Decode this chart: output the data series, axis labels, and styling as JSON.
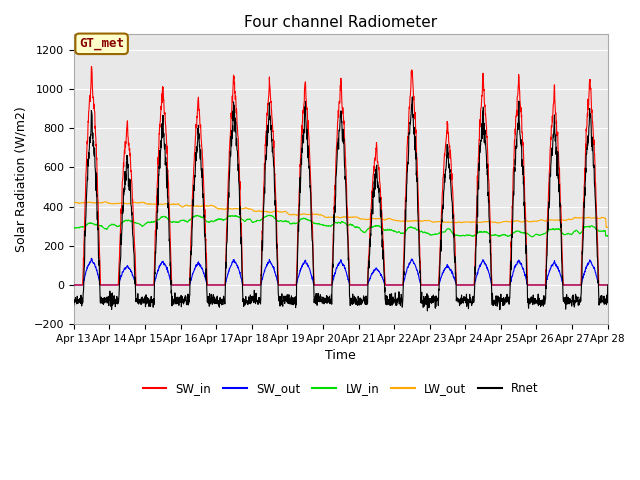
{
  "title": "Four channel Radiometer",
  "xlabel": "Time",
  "ylabel": "Solar Radiation (W/m2)",
  "ylim": [
    -200,
    1280
  ],
  "yticks": [
    -200,
    0,
    200,
    400,
    600,
    800,
    1000,
    1200
  ],
  "n_days": 15,
  "n_points": 2160,
  "annotation_text": "GT_met",
  "annotation_bg": "#ffffcc",
  "annotation_border": "#996600",
  "fig_bg": "#ffffff",
  "plot_bg": "#e8e8e8",
  "grid_color": "#ffffff",
  "series": {
    "SW_in": {
      "color": "#ff0000",
      "lw": 0.8
    },
    "SW_out": {
      "color": "#0000ff",
      "lw": 0.8
    },
    "LW_in": {
      "color": "#00dd00",
      "lw": 0.8
    },
    "LW_out": {
      "color": "#ffaa00",
      "lw": 0.8
    },
    "Rnet": {
      "color": "#000000",
      "lw": 0.8
    }
  },
  "x_tick_labels": [
    "Apr 13",
    "Apr 14",
    "Apr 15",
    "Apr 16",
    "Apr 17",
    "Apr 18",
    "Apr 19",
    "Apr 20",
    "Apr 21",
    "Apr 22",
    "Apr 23",
    "Apr 24",
    "Apr 25",
    "Apr 26",
    "Apr 27",
    "Apr 28"
  ]
}
